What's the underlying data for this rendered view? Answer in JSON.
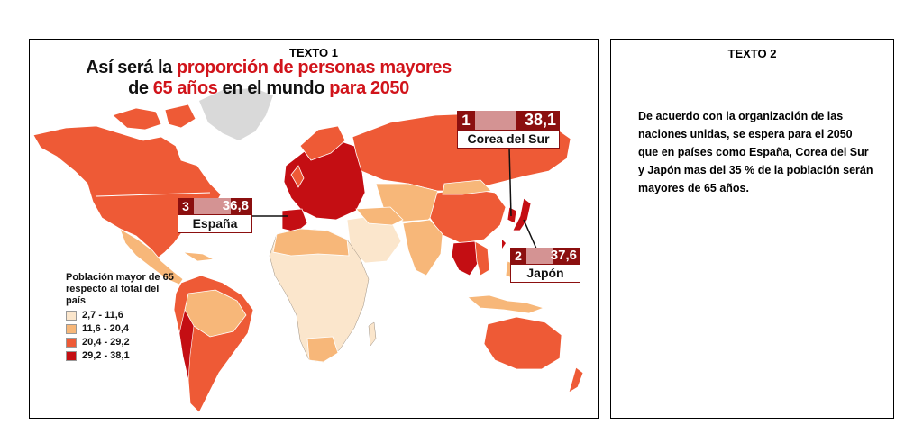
{
  "texto1": {
    "label": "TEXTO 1",
    "title_black_1": "Así será la ",
    "title_red_1": "proporción de personas mayores",
    "title_black_2": "de ",
    "title_red_2": "65 años",
    "title_black_3": " en el mundo ",
    "title_red_3": "para 2050"
  },
  "callouts": [
    {
      "rank": "1",
      "value": "38,1",
      "country": "Corea del Sur"
    },
    {
      "rank": "3",
      "value": "36,8",
      "country": "España"
    },
    {
      "rank": "2",
      "value": "37,6",
      "country": "Japón"
    }
  ],
  "legend": {
    "title": "Población mayor de 65 respecto al total del país",
    "items": [
      {
        "label": "2,7 - 11,6",
        "color": "#fbe6cc"
      },
      {
        "label": "11,6 - 20,4",
        "color": "#f7b779"
      },
      {
        "label": "20,4 - 29,2",
        "color": "#ee5a36"
      },
      {
        "label": "29,2 - 38,1",
        "color": "#c40e13"
      }
    ]
  },
  "texto2": {
    "label": "TEXTO 2",
    "body": "De acuerdo con la organización de las naciones unidas, se espera para el 2050 que en países como España, Corea del Sur y Japón mas del 35 % de la población serán mayores de 65 años."
  },
  "colors": {
    "accent_red": "#d1141b",
    "callout_dark": "#8b0f0f",
    "no_data": "#d9d9d9",
    "country_border": "#ffffff"
  }
}
